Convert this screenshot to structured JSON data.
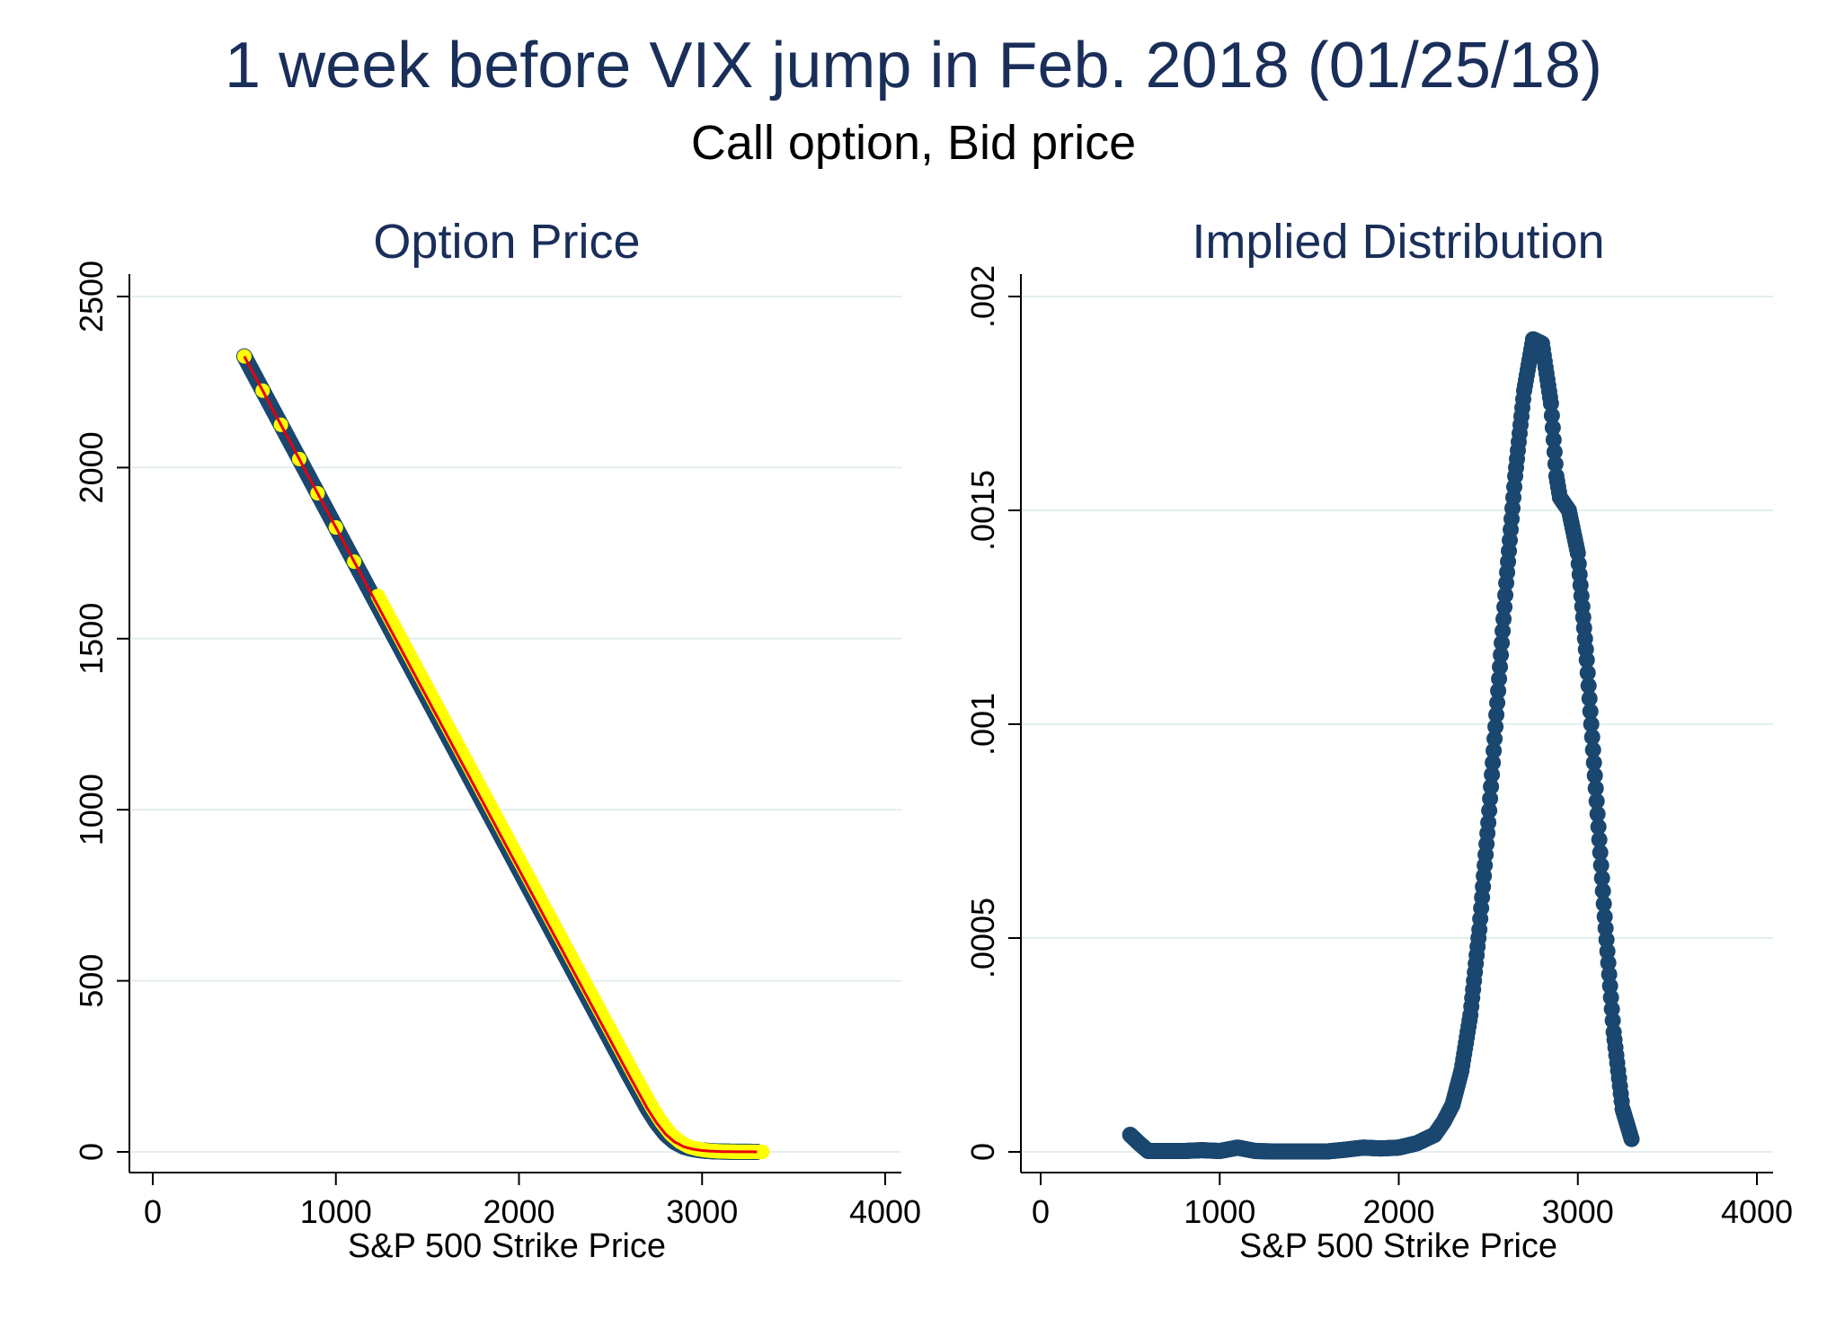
{
  "title": "1 week before VIX jump in Feb. 2018 (01/25/18)",
  "subtitle": "Call option, Bid price",
  "colors": {
    "title": "#1a2e5a",
    "marker": "#1a476f",
    "highlight": "#ffff00",
    "fit": "#e8000b",
    "grid": "#e4eeee"
  },
  "chart_data": [
    {
      "type": "scatter",
      "title": "Option Price",
      "xlabel": "S&P 500 Strike Price",
      "ylabel": "",
      "xlim": [
        0,
        4000
      ],
      "ylim": [
        0,
        2500
      ],
      "xticks": [
        "0",
        "1000",
        "2000",
        "3000",
        "4000"
      ],
      "yticks": [
        "0",
        "500",
        "1000",
        "1500",
        "2000",
        "2500"
      ],
      "grid": true,
      "series": [
        {
          "marker": "circle",
          "x": [
            500,
            600,
            700,
            800,
            900,
            1000,
            1100,
            1200,
            1300,
            1400,
            1500,
            1600,
            1700,
            1800,
            1900,
            2000,
            2100,
            2200,
            2300,
            2400,
            2500,
            2600,
            2700,
            2750,
            2800,
            2850,
            2900,
            2950,
            3000,
            3050,
            3100,
            3150,
            3200,
            3250,
            3300
          ],
          "y": [
            2325,
            2225,
            2125,
            2025,
            1925,
            1825,
            1725,
            1625,
            1525,
            1425,
            1325,
            1225,
            1125,
            1025,
            925,
            825,
            725,
            625,
            525,
            425,
            325,
            225,
            128,
            86,
            52,
            29,
            15,
            8,
            4,
            2,
            1,
            0.5,
            0.3,
            0.2,
            0.1
          ]
        }
      ]
    },
    {
      "type": "scatter",
      "title": "Implied Distribution",
      "xlabel": "S&P 500 Strike Price",
      "ylabel": "",
      "xlim": [
        0,
        4000
      ],
      "ylim": [
        0,
        0.002
      ],
      "xticks": [
        "0",
        "1000",
        "2000",
        "3000",
        "4000"
      ],
      "yticks": [
        "0",
        ".0005",
        ".001",
        ".0015",
        ".002"
      ],
      "grid": true,
      "series": [
        {
          "marker": "circle",
          "x": [
            500,
            550,
            600,
            700,
            800,
            900,
            1000,
            1100,
            1200,
            1300,
            1400,
            1500,
            1600,
            1700,
            1800,
            1900,
            2000,
            2100,
            2200,
            2250,
            2300,
            2350,
            2400,
            2450,
            2500,
            2550,
            2600,
            2650,
            2700,
            2750,
            2800,
            2850,
            2880,
            2900,
            2950,
            3000,
            3050,
            3100,
            3150,
            3200,
            3250,
            3300
          ],
          "y": [
            4e-05,
            2e-05,
            2e-06,
            2e-06,
            2e-06,
            4e-06,
            2e-06,
            1e-05,
            2e-06,
            1e-06,
            1e-06,
            1e-06,
            1e-06,
            5e-06,
            1e-05,
            8e-06,
            1e-05,
            2e-05,
            4e-05,
            7e-05,
            0.00011,
            0.00019,
            0.00032,
            0.00052,
            0.00077,
            0.00105,
            0.00133,
            0.00158,
            0.00178,
            0.0019,
            0.00189,
            0.00175,
            0.00158,
            0.00153,
            0.0015,
            0.0014,
            0.00115,
            0.00085,
            0.00055,
            0.00028,
            0.0001,
            3e-05
          ]
        }
      ]
    }
  ]
}
